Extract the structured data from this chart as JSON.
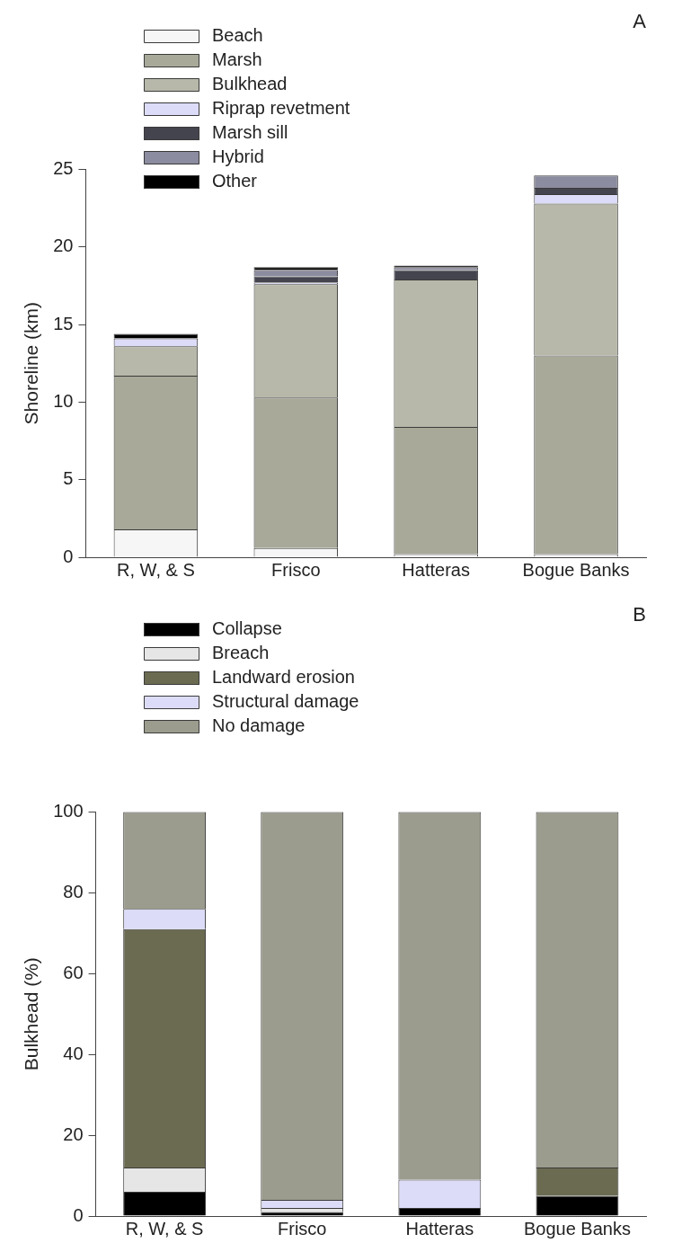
{
  "chart_data": [
    {
      "type": "bar",
      "title": "A",
      "ylabel": "Shoreline (km)",
      "categories": [
        "R, W, & S",
        "Frisco",
        "Hatteras",
        "Bogue Banks"
      ],
      "stacked": true,
      "legend": "top left",
      "grid": false,
      "ylim": [
        0,
        25
      ],
      "yticks": [
        0,
        5,
        10,
        15,
        20,
        25
      ],
      "series": [
        {
          "name": "Beach",
          "color": "#f6f6f6",
          "values": [
            1.8,
            0.6,
            0.2,
            0.2
          ]
        },
        {
          "name": "Marsh",
          "color": "#a9a99a",
          "values": [
            9.9,
            9.7,
            8.2,
            12.8
          ]
        },
        {
          "name": "Bulkhead",
          "color": "#b8b8aa",
          "values": [
            1.9,
            7.3,
            9.5,
            9.8
          ]
        },
        {
          "name": "Riprap revetment",
          "color": "#dcdcf8",
          "values": [
            0.5,
            0.1,
            0,
            0.6
          ]
        },
        {
          "name": "Marsh sill",
          "color": "#44444f",
          "values": [
            0,
            0.4,
            0.6,
            0.4
          ]
        },
        {
          "name": "Hybrid",
          "color": "#8c8ca0",
          "values": [
            0,
            0.4,
            0.2,
            0.8
          ]
        },
        {
          "name": "Other",
          "color": "#000000",
          "values": [
            0.3,
            0.2,
            0.1,
            0
          ]
        }
      ]
    },
    {
      "type": "bar",
      "title": "B",
      "ylabel": "Bulkhead (%)",
      "categories": [
        "R, W, & S",
        "Frisco",
        "Hatteras",
        "Bogue Banks"
      ],
      "stacked": true,
      "legend": "top left",
      "grid": false,
      "ylim": [
        0,
        100
      ],
      "yticks": [
        0,
        20,
        40,
        60,
        80,
        100
      ],
      "series": [
        {
          "name": "Collapse",
          "color": "#000000",
          "values": [
            6,
            1,
            2,
            5
          ]
        },
        {
          "name": "Breach",
          "color": "#e6e6e6",
          "values": [
            6,
            1,
            0,
            0
          ]
        },
        {
          "name": "Landward erosion",
          "color": "#6b6b52",
          "values": [
            59,
            0,
            0,
            7
          ]
        },
        {
          "name": "Structural damage",
          "color": "#dcdcf8",
          "values": [
            5,
            2,
            7,
            0
          ]
        },
        {
          "name": "No damage",
          "color": "#9c9c8e",
          "values": [
            24,
            96,
            91,
            88
          ]
        }
      ]
    }
  ]
}
